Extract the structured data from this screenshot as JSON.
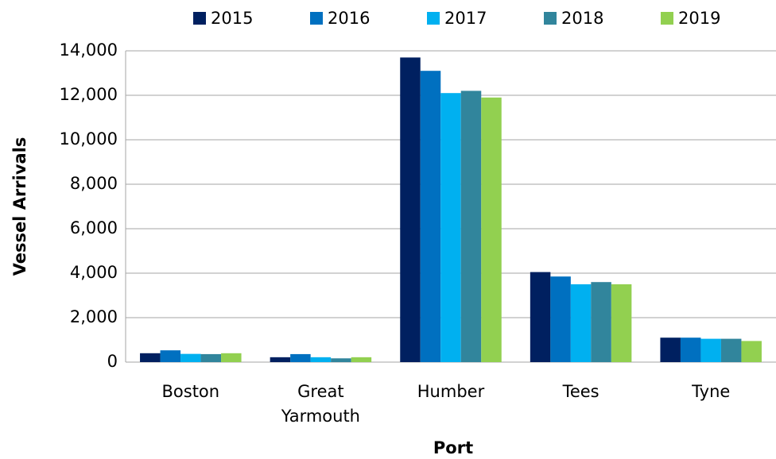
{
  "chart_data": {
    "type": "bar",
    "x_label": "Port",
    "y_label": "Vessel Arrivals",
    "categories": [
      "Boston",
      "Great Yarmouth",
      "Humber",
      "Tees",
      "Tyne"
    ],
    "series": [
      {
        "name": "2015",
        "color": "#002060",
        "values": [
          400,
          220,
          13700,
          4050,
          1100
        ]
      },
      {
        "name": "2016",
        "color": "#0070c0",
        "values": [
          530,
          360,
          13100,
          3850,
          1100
        ]
      },
      {
        "name": "2017",
        "color": "#00b0f0",
        "values": [
          370,
          220,
          12100,
          3500,
          1050
        ]
      },
      {
        "name": "2018",
        "color": "#31859c",
        "values": [
          360,
          170,
          12200,
          3600,
          1050
        ]
      },
      {
        "name": "2019",
        "color": "#92d050",
        "values": [
          400,
          220,
          11900,
          3500,
          950
        ]
      }
    ],
    "ylim": [
      0,
      14000
    ],
    "yticks": [
      0,
      {
        "value": 2000,
        "label": "2,000"
      },
      {
        "value": 4000,
        "label": "4,000"
      },
      {
        "value": 6000,
        "label": "6,000"
      },
      {
        "value": 8000,
        "label": "8,000"
      },
      {
        "value": 10000,
        "label": "10,000"
      },
      {
        "value": 12000,
        "label": "12,000"
      },
      {
        "value": 14000,
        "label": "14,000"
      }
    ],
    "grid": true,
    "legend": "top"
  }
}
